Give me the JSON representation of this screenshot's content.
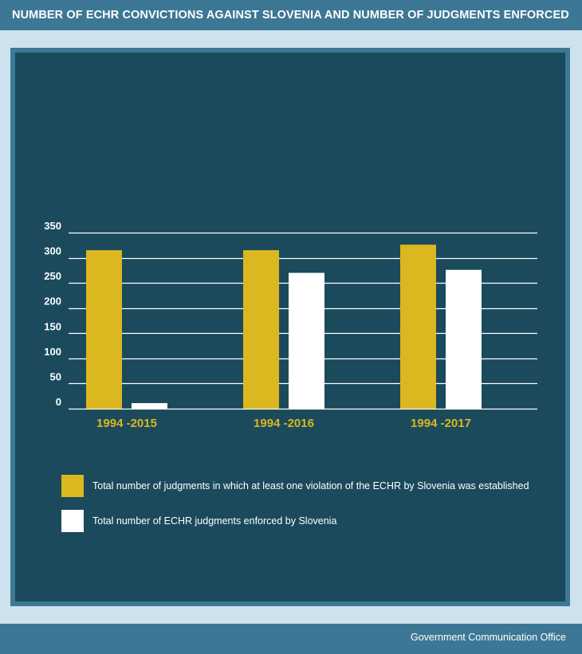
{
  "header": {
    "title": "NUMBER OF ECHR CONVICTIONS AGAINST SLOVENIA AND NUMBER OF JUDGMENTS ENFORCED"
  },
  "footer": {
    "credit": "Government Communication Office"
  },
  "colors": {
    "background": "#cde2ec",
    "band": "#3c7895",
    "panel": "#1a4a5b",
    "series_violations": "#dbb720",
    "series_enforced": "#ffffff",
    "category_label": "#dbb720"
  },
  "chart_data": {
    "type": "bar",
    "title": "",
    "xlabel": "",
    "ylabel": "",
    "categories": [
      "1994 -2015",
      "1994 -2016",
      "1994 -2017"
    ],
    "series": [
      {
        "name": "Total number of judgments in which at least one violation of the ECHR by Slovenia was established",
        "color": "#dbb720",
        "values": [
          315,
          315,
          326
        ]
      },
      {
        "name": "Total number of ECHR judgments enforced by Slovenia",
        "color": "#ffffff",
        "values": [
          11,
          270,
          276
        ]
      }
    ],
    "ylim": [
      0,
      350
    ],
    "yticks": [
      0,
      50,
      100,
      150,
      200,
      250,
      300,
      350
    ],
    "grid": true,
    "legend": "bottom-left"
  }
}
